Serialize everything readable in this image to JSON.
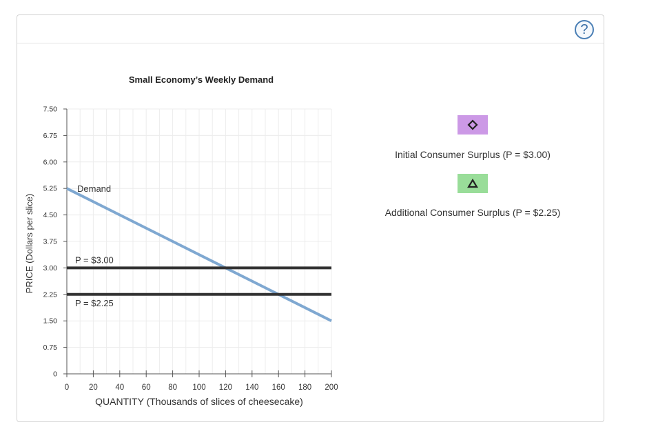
{
  "help": {
    "label": "?",
    "icon": "help-question-icon"
  },
  "chart_data": {
    "type": "line",
    "title": "Small Economy’s Weekly Demand",
    "xlabel": "QUANTITY (Thousands of slices of cheesecake)",
    "ylabel": "PRICE (Dollars per slice)",
    "xlim": [
      0,
      200
    ],
    "ylim": [
      0,
      7.5
    ],
    "xticks": [
      "0",
      "20",
      "40",
      "60",
      "80",
      "100",
      "120",
      "140",
      "160",
      "180",
      "200"
    ],
    "yticks": [
      "0",
      "0.75",
      "1.50",
      "2.25",
      "3.00",
      "3.75",
      "4.50",
      "5.25",
      "6.00",
      "6.75",
      "7.50"
    ],
    "xtick_values": [
      0,
      20,
      40,
      60,
      80,
      100,
      120,
      140,
      160,
      180,
      200
    ],
    "ytick_values": [
      0,
      0.75,
      1.5,
      2.25,
      3.0,
      3.75,
      4.5,
      5.25,
      6.0,
      6.75,
      7.5
    ],
    "grid": true,
    "series": [
      {
        "name": "Demand",
        "color": "#7fa8d1",
        "x": [
          0,
          200
        ],
        "y": [
          5.25,
          1.5
        ]
      },
      {
        "name": "P = $3.00",
        "color": "#333333",
        "x": [
          0,
          200
        ],
        "y": [
          3.0,
          3.0
        ]
      },
      {
        "name": "P = $2.25",
        "color": "#333333",
        "x": [
          0,
          200
        ],
        "y": [
          2.25,
          2.25
        ]
      }
    ]
  },
  "legend": [
    {
      "label": "Initial Consumer Surplus (P = $3.00)",
      "icon": "diamond-icon",
      "color": "#cc99e6"
    },
    {
      "label": "Additional Consumer Surplus (P = $2.25)",
      "icon": "triangle-icon",
      "color": "#99dd99"
    }
  ]
}
